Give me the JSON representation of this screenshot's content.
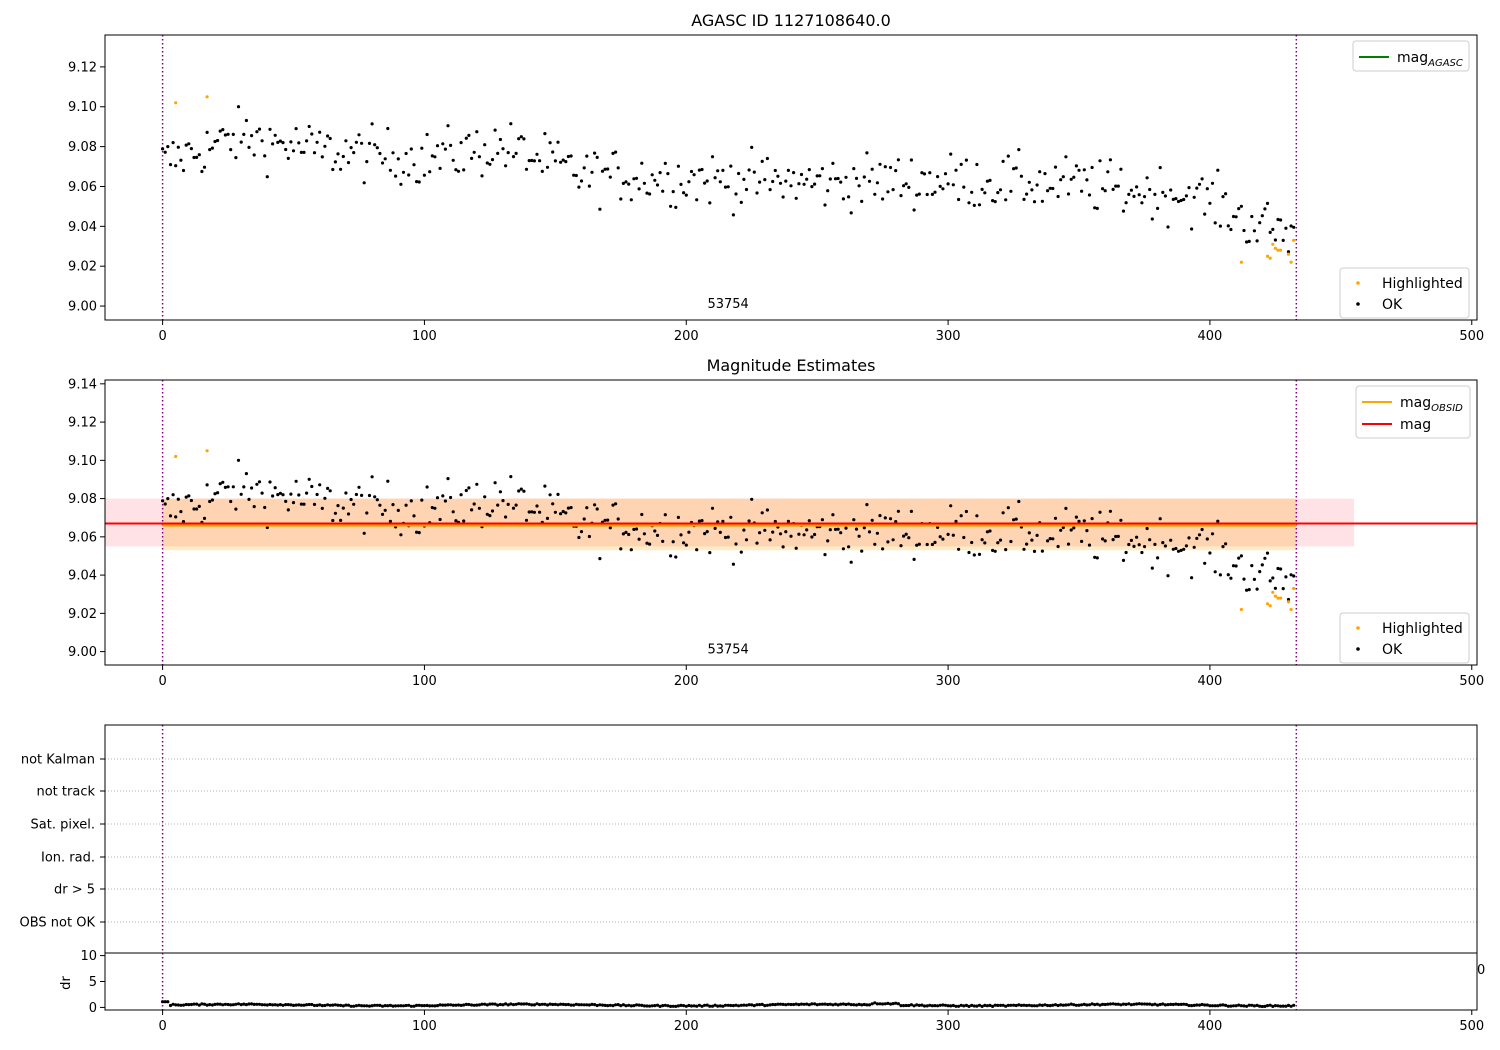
{
  "chart_data": [
    {
      "type": "scatter",
      "title": "AGASC ID 1127108640.0",
      "xlim": [
        -22,
        502
      ],
      "ylim": [
        8.993,
        9.136
      ],
      "xticks": [
        0,
        100,
        200,
        300,
        400,
        500
      ],
      "yticks": [
        "9.00",
        "9.02",
        "9.04",
        "9.06",
        "9.08",
        "9.10",
        "9.12"
      ],
      "vlines": [
        0,
        433
      ],
      "annotation": {
        "text": "53754",
        "x": 216,
        "y": 8.999
      },
      "legend_lines": [
        {
          "label": "mag",
          "subscript": "AGASC",
          "color": "#008000"
        }
      ],
      "legend_points": [
        {
          "label": "Highlighted",
          "color": "#ffa500"
        },
        {
          "label": "OK",
          "color": "#000000"
        }
      ],
      "series": [
        {
          "name": "OK",
          "trend": [
            [
              0,
              9.072
            ],
            [
              30,
              9.085
            ],
            [
              60,
              9.078
            ],
            [
              100,
              9.074
            ],
            [
              130,
              9.08
            ],
            [
              160,
              9.066
            ],
            [
              200,
              9.064
            ],
            [
              250,
              9.062
            ],
            [
              300,
              9.063
            ],
            [
              350,
              9.061
            ],
            [
              370,
              9.058
            ],
            [
              390,
              9.056
            ],
            [
              400,
              9.053
            ],
            [
              415,
              9.042
            ],
            [
              432,
              9.036
            ]
          ],
          "count": 433,
          "scatter": 0.009
        },
        {
          "name": "Highlighted",
          "points": [
            [
              5,
              9.102
            ],
            [
              17,
              9.105
            ],
            [
              412,
              9.022
            ],
            [
              422,
              9.025
            ],
            [
              423,
              9.024
            ],
            [
              424,
              9.031
            ],
            [
              425,
              9.029
            ],
            [
              426,
              9.028
            ],
            [
              427,
              9.028
            ],
            [
              430,
              9.026
            ],
            [
              431,
              9.022
            ],
            [
              432,
              9.033
            ]
          ]
        }
      ]
    },
    {
      "type": "scatter",
      "title": "Magnitude Estimates",
      "xlim": [
        -22,
        502
      ],
      "ylim": [
        8.993,
        9.142
      ],
      "xticks": [
        0,
        100,
        200,
        300,
        400,
        500
      ],
      "yticks": [
        "9.00",
        "9.02",
        "9.04",
        "9.06",
        "9.08",
        "9.10",
        "9.12",
        "9.14"
      ],
      "vlines": [
        0,
        433
      ],
      "annotation": {
        "text": "53754",
        "x": 216,
        "y": 8.999
      },
      "mag": 9.067,
      "mag_band": [
        9.055,
        9.08
      ],
      "mag_obsid": 9.066,
      "mag_obsid_band": [
        9.053,
        9.08
      ],
      "legend_lines": [
        {
          "label": "mag",
          "subscript": "OBSID",
          "color": "#ffa500"
        },
        {
          "label": "mag",
          "subscript": "",
          "color": "#ff0000"
        }
      ],
      "legend_points": [
        {
          "label": "Highlighted",
          "color": "#ffa500"
        },
        {
          "label": "OK",
          "color": "#000000"
        }
      ]
    },
    {
      "type": "scatter",
      "title": "",
      "xlim": [
        -22,
        502
      ],
      "vlines": [
        0,
        433
      ],
      "categories": [
        "not Kalman",
        "not track",
        "Sat. pixel.",
        "Ion. rad.",
        "dr > 5",
        "OBS not OK"
      ],
      "flags": []
    },
    {
      "type": "scatter",
      "title": "",
      "xlim": [
        -22,
        502
      ],
      "ylim": [
        -0.5,
        10.5
      ],
      "xticks": [
        0,
        100,
        200,
        300,
        400,
        500
      ],
      "yticks": [
        "0",
        "5",
        "10"
      ],
      "ylabel": "dr",
      "vlines": [
        0,
        433
      ],
      "stray_tick": "0",
      "series": [
        {
          "name": "dr",
          "count": 433,
          "mean": 0.45,
          "scatter": 0.25
        }
      ]
    }
  ]
}
